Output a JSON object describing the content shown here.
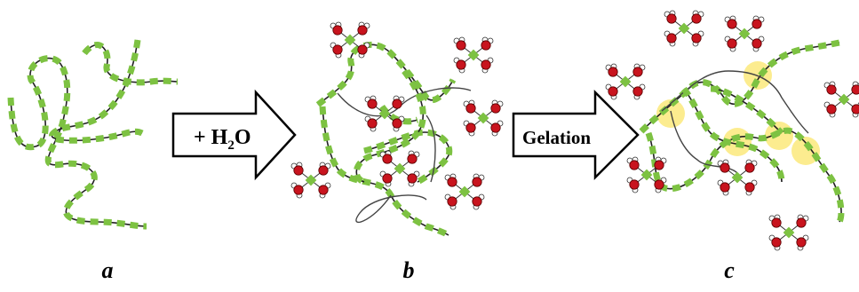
{
  "arrows": {
    "hydration": {
      "text": "+ H",
      "subscript": "2",
      "suffix": "O"
    },
    "gelation": {
      "text": "Gelation"
    }
  },
  "panels": [
    {
      "label": "a"
    },
    {
      "label": "b"
    },
    {
      "label": "c"
    }
  ],
  "colors": {
    "chain_beads": "#7dc242",
    "chain_line": "#222222",
    "oxygen": "#c8141e",
    "hydrogen": "#ffffff",
    "center_atom": "#7dc242",
    "crosslink": "#fbe66a"
  }
}
